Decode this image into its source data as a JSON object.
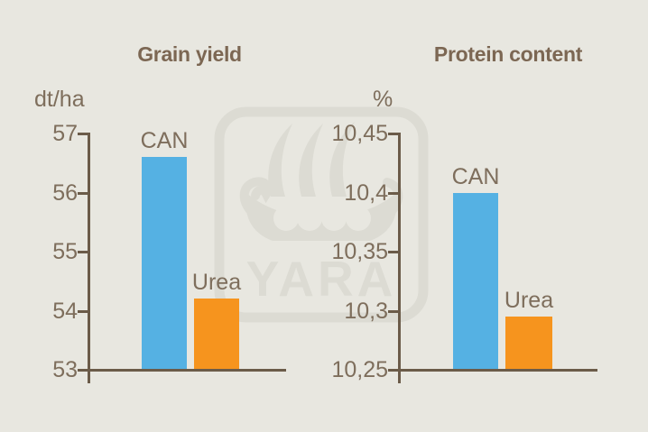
{
  "page": {
    "background_color": "#e8e7e0",
    "axis_color": "#6b5b49",
    "label_color": "#7e6e5c",
    "title_color": "#7c6753"
  },
  "watermark": {
    "name": "yara-viking-ship-logo",
    "text": "YARA",
    "color": "#dcdbd3"
  },
  "chart_data": [
    {
      "type": "bar",
      "title": "Grain yield",
      "ylabel": "dt/ha",
      "categories": [
        "CAN",
        "Urea"
      ],
      "values": [
        56.6,
        54.2
      ],
      "bar_colors": [
        "#55b1e3",
        "#f6941e"
      ],
      "ylim": [
        53,
        57
      ],
      "yticks": [
        57,
        56,
        55,
        54,
        53
      ],
      "ytick_labels": [
        "57",
        "56",
        "55",
        "54",
        "53"
      ],
      "xlabel": "",
      "grid": false,
      "legend": "none",
      "bar_label_position": "above"
    },
    {
      "type": "bar",
      "title": "Protein content",
      "ylabel": "%",
      "categories": [
        "CAN",
        "Urea"
      ],
      "values": [
        10.4,
        10.295
      ],
      "bar_colors": [
        "#55b1e3",
        "#f6941e"
      ],
      "ylim": [
        10.25,
        10.45
      ],
      "yticks": [
        10.45,
        10.4,
        10.35,
        10.3,
        10.25
      ],
      "ytick_labels": [
        "10,45",
        "10,4",
        "10,35",
        "10,3",
        "10,25"
      ],
      "xlabel": "",
      "grid": false,
      "legend": "none",
      "bar_label_position": "above"
    }
  ]
}
